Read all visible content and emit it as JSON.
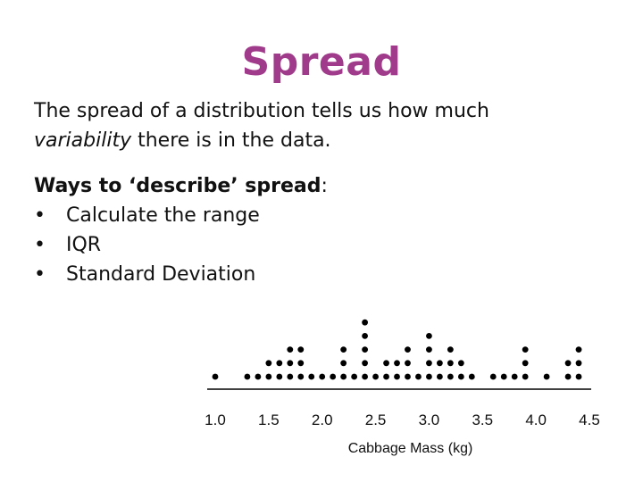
{
  "slide": {
    "title": "Spread",
    "para_pre": "The spread of a distribution tells us how much",
    "para_em": "variability",
    "para_post": " there is in the data.",
    "ways_heading": "Ways to ‘describe’ spread",
    "ways_colon": ":",
    "bullet_symbol": "•",
    "bullets": [
      "Calculate the range",
      "IQR",
      "Standard Deviation"
    ]
  },
  "colors": {
    "title": "#a03a8a",
    "text": "#111111",
    "dots": "#000000"
  },
  "chart_data": {
    "type": "dotplot",
    "xlabel": "Cabbage Mass (kg)",
    "ylabel": "",
    "title": "",
    "xlim": [
      1.0,
      4.5
    ],
    "xticks": [
      "1.0",
      "1.5",
      "2.0",
      "2.5",
      "3.0",
      "3.5",
      "4.0",
      "4.5"
    ],
    "points": [
      {
        "x": 1.0,
        "count": 1
      },
      {
        "x": 1.3,
        "count": 1
      },
      {
        "x": 1.4,
        "count": 1
      },
      {
        "x": 1.5,
        "count": 2
      },
      {
        "x": 1.6,
        "count": 2
      },
      {
        "x": 1.7,
        "count": 3
      },
      {
        "x": 1.8,
        "count": 3
      },
      {
        "x": 1.9,
        "count": 1
      },
      {
        "x": 2.0,
        "count": 1
      },
      {
        "x": 2.1,
        "count": 1
      },
      {
        "x": 2.2,
        "count": 3
      },
      {
        "x": 2.3,
        "count": 1
      },
      {
        "x": 2.4,
        "count": 5
      },
      {
        "x": 2.5,
        "count": 1
      },
      {
        "x": 2.6,
        "count": 2
      },
      {
        "x": 2.7,
        "count": 2
      },
      {
        "x": 2.8,
        "count": 3
      },
      {
        "x": 2.9,
        "count": 1
      },
      {
        "x": 3.0,
        "count": 4
      },
      {
        "x": 3.1,
        "count": 2
      },
      {
        "x": 3.2,
        "count": 3
      },
      {
        "x": 3.3,
        "count": 2
      },
      {
        "x": 3.4,
        "count": 1
      },
      {
        "x": 3.6,
        "count": 1
      },
      {
        "x": 3.7,
        "count": 1
      },
      {
        "x": 3.8,
        "count": 1
      },
      {
        "x": 3.9,
        "count": 3
      },
      {
        "x": 4.1,
        "count": 1
      },
      {
        "x": 4.3,
        "count": 2
      },
      {
        "x": 4.4,
        "count": 3
      }
    ]
  }
}
